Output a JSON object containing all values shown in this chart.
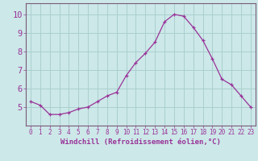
{
  "x": [
    0,
    1,
    2,
    3,
    4,
    5,
    6,
    7,
    8,
    9,
    10,
    11,
    12,
    13,
    14,
    15,
    16,
    17,
    18,
    19,
    20,
    21,
    22,
    23
  ],
  "y": [
    5.3,
    5.1,
    4.6,
    4.6,
    4.7,
    4.9,
    5.0,
    5.3,
    5.6,
    5.8,
    6.7,
    7.4,
    7.9,
    8.5,
    9.6,
    10.0,
    9.9,
    9.3,
    8.6,
    7.6,
    6.5,
    6.2,
    5.6,
    5.0
  ],
  "line_color": "#993399",
  "marker": "+",
  "marker_color": "#993399",
  "bg_color": "#cce8e8",
  "grid_color": "#aacfcf",
  "axis_label_color": "#993399",
  "tick_label_color": "#993399",
  "xlabel": "Windchill (Refroidissement éolien,°C)",
  "xlim": [
    -0.5,
    23.5
  ],
  "ylim": [
    4.0,
    10.6
  ],
  "yticks": [
    5,
    6,
    7,
    8,
    9,
    10
  ],
  "xticks": [
    0,
    1,
    2,
    3,
    4,
    5,
    6,
    7,
    8,
    9,
    10,
    11,
    12,
    13,
    14,
    15,
    16,
    17,
    18,
    19,
    20,
    21,
    22,
    23
  ],
  "spine_color": "#7a5a7a",
  "tick_fontsize": 5.5,
  "xlabel_fontsize": 6.5,
  "ytick_fontsize": 7.5
}
